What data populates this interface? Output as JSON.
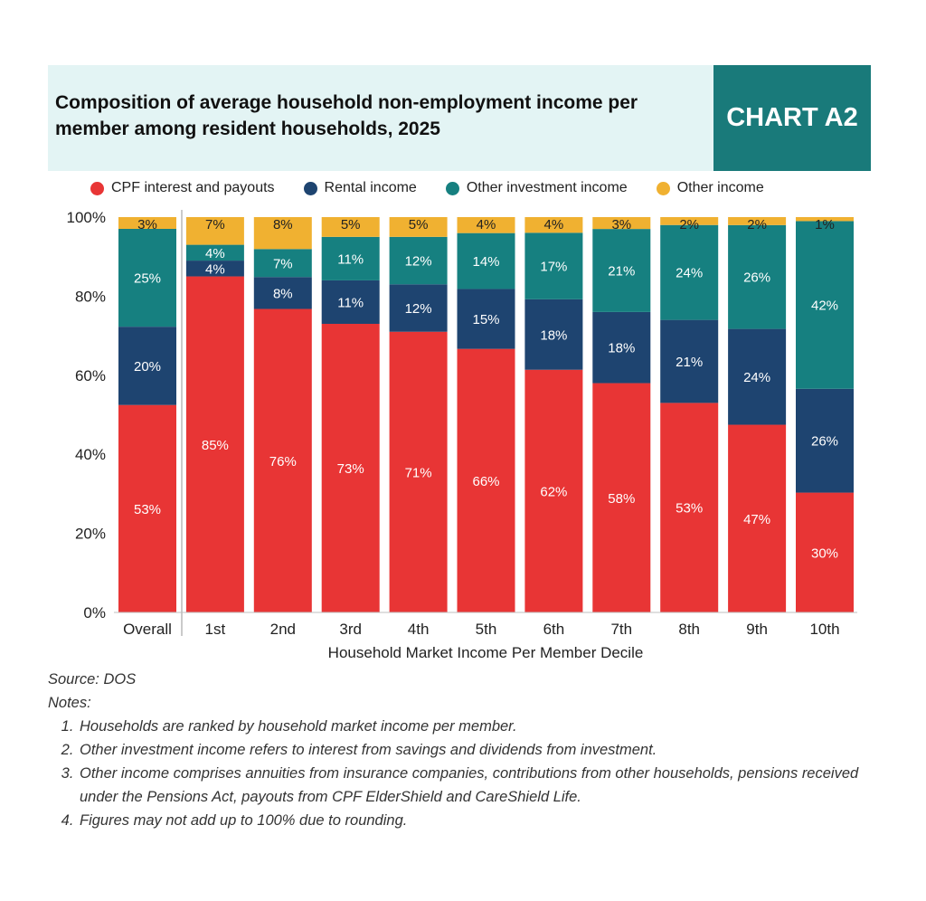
{
  "header": {
    "title": "Composition of average household non-employment income per member among resident households, 2025",
    "badge": "CHART A2",
    "colors": {
      "header_bg": "#e3f4f4",
      "badge_bg": "#197a7a"
    }
  },
  "chart_data": {
    "type": "bar",
    "stacked": true,
    "categories": [
      "Overall",
      "1st",
      "2nd",
      "3rd",
      "4th",
      "5th",
      "6th",
      "7th",
      "8th",
      "9th",
      "10th"
    ],
    "series": [
      {
        "name": "CPF interest and payouts",
        "color": "#e83535",
        "values": [
          53,
          85,
          76,
          73,
          71,
          66,
          62,
          58,
          53,
          47,
          30
        ],
        "labels": [
          "53%",
          "85%",
          "76%",
          "73%",
          "71%",
          "66%",
          "62%",
          "58%",
          "53%",
          "47%",
          "30%"
        ]
      },
      {
        "name": "Rental income",
        "color": "#1e4470",
        "values": [
          20,
          4,
          8,
          11,
          12,
          15,
          18,
          18,
          21,
          24,
          26
        ],
        "labels": [
          "20%",
          "4%",
          "8%",
          "11%",
          "12%",
          "15%",
          "18%",
          "18%",
          "21%",
          "24%",
          "26%"
        ]
      },
      {
        "name": "Other investment income",
        "color": "#168080",
        "values": [
          25,
          4,
          7,
          11,
          12,
          14,
          17,
          21,
          24,
          26,
          42
        ],
        "labels": [
          "25%",
          "4%",
          "7%",
          "11%",
          "12%",
          "14%",
          "17%",
          "21%",
          "24%",
          "26%",
          "42%"
        ]
      },
      {
        "name": "Other income",
        "color": "#f0b131",
        "values": [
          3,
          7,
          8,
          5,
          5,
          4,
          4,
          3,
          2,
          2,
          1
        ],
        "labels": [
          "3%",
          "7%",
          "8%",
          "5%",
          "5%",
          "4%",
          "4%",
          "3%",
          "2%",
          "2%",
          "1%"
        ]
      }
    ],
    "xlabel": "Household Market Income Per Member Decile",
    "ylabel": "",
    "ylim": [
      0,
      100
    ],
    "yticks": [
      "0%",
      "20%",
      "40%",
      "60%",
      "80%",
      "100%"
    ],
    "legend_position": "top",
    "grid": false
  },
  "notes": {
    "source": "Source: DOS",
    "heading": "Notes:",
    "items": [
      "Households are ranked by household market income per member.",
      "Other investment income refers to interest from savings and dividends from investment.",
      "Other income comprises annuities from insurance companies, contributions from other households, pensions received under the Pensions Act, payouts from CPF ElderShield and CareShield Life.",
      "Figures may not add up to 100% due to rounding."
    ]
  }
}
